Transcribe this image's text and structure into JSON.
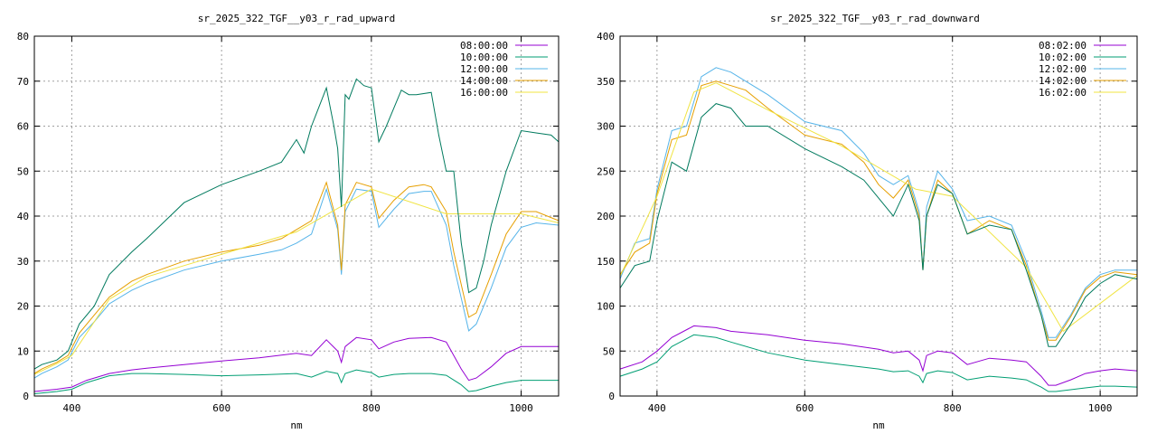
{
  "chart_data": [
    {
      "type": "line",
      "title": "sr_2025_322_TGF__y03_r_rad_upward",
      "xlabel": "nm",
      "ylabel": "",
      "xlim": [
        350,
        1050
      ],
      "ylim": [
        0,
        80
      ],
      "xticks": [
        400,
        600,
        800,
        1000
      ],
      "yticks": [
        0,
        10,
        20,
        30,
        40,
        50,
        60,
        70,
        80
      ],
      "grid": true,
      "legend": "top-right",
      "series": [
        {
          "name": "08:00:00",
          "color": "#9400d3",
          "x": [
            350,
            380,
            400,
            420,
            450,
            480,
            500,
            550,
            600,
            650,
            700,
            720,
            740,
            755,
            760,
            765,
            780,
            800,
            810,
            830,
            850,
            880,
            900,
            920,
            930,
            940,
            960,
            980,
            1000,
            1020,
            1050
          ],
          "y": [
            1,
            1.5,
            2,
            3.5,
            5,
            5.8,
            6.2,
            7,
            7.8,
            8.5,
            9.5,
            9,
            12.5,
            10,
            7.5,
            11,
            13,
            12.5,
            10.5,
            12,
            12.8,
            13,
            12,
            6,
            3.5,
            4,
            6.5,
            9.5,
            11,
            11,
            11
          ]
        },
        {
          "name": "10:00:00",
          "color": "#009e73",
          "x": [
            350,
            380,
            400,
            420,
            450,
            480,
            500,
            550,
            600,
            650,
            700,
            720,
            740,
            755,
            760,
            765,
            780,
            800,
            810,
            830,
            850,
            880,
            900,
            920,
            930,
            940,
            960,
            980,
            1000,
            1020,
            1050
          ],
          "y": [
            0.5,
            1,
            1.5,
            3,
            4.5,
            5,
            5,
            4.8,
            4.5,
            4.7,
            5,
            4.2,
            5.5,
            5,
            3,
            5,
            5.8,
            5.2,
            4.2,
            4.8,
            5,
            5,
            4.6,
            2.5,
            1,
            1.2,
            2.2,
            3,
            3.5,
            3.5,
            3.5
          ]
        },
        {
          "name": "12:00:00",
          "color": "#56b4e9",
          "x": [
            350,
            360,
            380,
            395,
            410,
            430,
            450,
            480,
            500,
            550,
            600,
            650,
            680,
            700,
            720,
            740,
            755,
            760,
            765,
            780,
            800,
            810,
            830,
            850,
            870,
            880,
            900,
            910,
            930,
            940,
            960,
            980,
            1000,
            1020,
            1050
          ],
          "y": [
            4,
            5,
            6.5,
            8,
            13,
            16.5,
            20.5,
            23.5,
            25,
            28,
            30,
            31.5,
            32.5,
            34,
            36,
            46,
            37,
            27,
            41,
            46,
            45.5,
            37.5,
            41.5,
            45,
            45.5,
            45.5,
            38,
            29,
            14.5,
            16,
            24,
            33,
            37.5,
            38.5,
            38
          ]
        },
        {
          "name": "14:00:00",
          "color": "#e69f00",
          "x": [
            350,
            360,
            380,
            395,
            410,
            430,
            450,
            480,
            500,
            550,
            600,
            650,
            680,
            700,
            720,
            740,
            755,
            760,
            765,
            780,
            800,
            810,
            830,
            850,
            870,
            880,
            900,
            910,
            930,
            940,
            960,
            980,
            1000,
            1020,
            1050
          ],
          "y": [
            5,
            6,
            7.5,
            9,
            14,
            18,
            22,
            25.5,
            27,
            30,
            32,
            33.5,
            35,
            37,
            39,
            47.5,
            38,
            28,
            42.5,
            47.5,
            46.5,
            39.5,
            43.5,
            46.5,
            47,
            46.5,
            41,
            32,
            17.5,
            18.5,
            27,
            36,
            41,
            41,
            39
          ]
        },
        {
          "name": "16:00:00",
          "color": "#f0e442",
          "x": [
            350,
            380,
            400,
            450,
            500,
            600,
            700,
            800,
            900,
            1000,
            1050
          ],
          "y": [
            4.8,
            7.2,
            9,
            21.5,
            26.5,
            31.5,
            36.5,
            46,
            40.5,
            40.5,
            38.5
          ]
        },
        {
          "name": "",
          "color": "#007a5e",
          "x": [
            350,
            360,
            380,
            395,
            410,
            430,
            450,
            480,
            500,
            550,
            600,
            650,
            680,
            700,
            710,
            720,
            740,
            750,
            755,
            760,
            765,
            770,
            780,
            790,
            800,
            810,
            820,
            840,
            850,
            860,
            880,
            890,
            900,
            910,
            920,
            930,
            940,
            950,
            960,
            980,
            1000,
            1020,
            1040,
            1050
          ],
          "y": [
            6,
            7,
            8,
            10,
            16,
            20,
            27,
            32,
            35,
            43,
            47,
            50,
            52,
            57,
            54,
            60,
            68.5,
            60,
            55,
            42,
            67,
            66,
            70.5,
            69,
            68.5,
            56.5,
            60,
            68,
            67,
            67,
            67.5,
            58,
            50,
            50,
            34,
            23,
            24,
            30,
            38,
            50,
            59,
            58.5,
            58,
            56.5
          ]
        }
      ]
    },
    {
      "type": "line",
      "title": "sr_2025_322_TGF__y03_r_rad_downward",
      "xlabel": "nm",
      "ylabel": "",
      "xlim": [
        350,
        1050
      ],
      "ylim": [
        0,
        400
      ],
      "xticks": [
        400,
        600,
        800,
        1000
      ],
      "yticks": [
        0,
        50,
        100,
        150,
        200,
        250,
        300,
        350,
        400
      ],
      "grid": true,
      "legend": "top-right",
      "series": [
        {
          "name": "08:02:00",
          "color": "#9400d3",
          "x": [
            350,
            380,
            400,
            420,
            450,
            480,
            500,
            550,
            600,
            650,
            700,
            720,
            740,
            755,
            760,
            765,
            780,
            800,
            820,
            850,
            880,
            900,
            920,
            930,
            940,
            960,
            980,
            1000,
            1020,
            1050
          ],
          "y": [
            30,
            38,
            50,
            65,
            78,
            76,
            72,
            68,
            62,
            58,
            52,
            48,
            50,
            40,
            28,
            45,
            50,
            48,
            35,
            42,
            40,
            38,
            22,
            12,
            12,
            18,
            25,
            28,
            30,
            28
          ]
        },
        {
          "name": "10:02:00",
          "color": "#009e73",
          "x": [
            350,
            380,
            400,
            420,
            450,
            480,
            500,
            550,
            600,
            650,
            700,
            720,
            740,
            755,
            760,
            765,
            780,
            800,
            820,
            850,
            880,
            900,
            920,
            930,
            940,
            960,
            980,
            1000,
            1020,
            1050
          ],
          "y": [
            22,
            30,
            38,
            55,
            68,
            65,
            60,
            48,
            40,
            35,
            30,
            27,
            28,
            22,
            15,
            25,
            28,
            26,
            18,
            22,
            20,
            18,
            10,
            5,
            5,
            7,
            9,
            11,
            11,
            10
          ]
        },
        {
          "name": "12:02:00",
          "color": "#56b4e9",
          "x": [
            350,
            370,
            390,
            400,
            420,
            440,
            460,
            480,
            500,
            520,
            550,
            600,
            650,
            680,
            700,
            720,
            740,
            755,
            760,
            765,
            780,
            800,
            820,
            850,
            880,
            900,
            920,
            930,
            940,
            960,
            980,
            1000,
            1020,
            1050
          ],
          "y": [
            130,
            170,
            175,
            230,
            295,
            300,
            355,
            365,
            360,
            350,
            335,
            305,
            295,
            270,
            245,
            235,
            245,
            205,
            140,
            210,
            250,
            230,
            195,
            200,
            190,
            150,
            95,
            65,
            65,
            90,
            120,
            135,
            140,
            140
          ]
        },
        {
          "name": "14:02:00",
          "color": "#e69f00",
          "x": [
            350,
            370,
            390,
            400,
            420,
            440,
            460,
            480,
            500,
            520,
            550,
            600,
            650,
            680,
            700,
            720,
            740,
            755,
            760,
            765,
            780,
            800,
            820,
            850,
            880,
            900,
            920,
            930,
            940,
            960,
            980,
            1000,
            1020,
            1050
          ],
          "y": [
            135,
            160,
            170,
            225,
            285,
            290,
            345,
            350,
            345,
            340,
            320,
            290,
            280,
            260,
            235,
            220,
            240,
            200,
            140,
            200,
            240,
            225,
            180,
            195,
            185,
            145,
            90,
            62,
            62,
            88,
            118,
            132,
            138,
            135
          ]
        },
        {
          "name": "16:02:00",
          "color": "#f0e442",
          "x": [
            350,
            400,
            450,
            480,
            550,
            650,
            750,
            800,
            900,
            950,
            1050
          ],
          "y": [
            133,
            222,
            338,
            348,
            318,
            278,
            230,
            222,
            143,
            72,
            134
          ]
        },
        {
          "name": "",
          "color": "#007a5e",
          "x": [
            350,
            370,
            390,
            400,
            420,
            440,
            460,
            480,
            500,
            520,
            550,
            600,
            650,
            680,
            700,
            720,
            740,
            755,
            760,
            765,
            780,
            800,
            820,
            850,
            880,
            900,
            920,
            930,
            940,
            960,
            980,
            1000,
            1020,
            1050
          ],
          "y": [
            120,
            145,
            150,
            195,
            260,
            250,
            310,
            325,
            320,
            300,
            300,
            275,
            255,
            240,
            220,
            200,
            235,
            195,
            140,
            200,
            235,
            225,
            180,
            190,
            185,
            140,
            90,
            55,
            55,
            80,
            110,
            125,
            135,
            130
          ]
        }
      ]
    }
  ]
}
